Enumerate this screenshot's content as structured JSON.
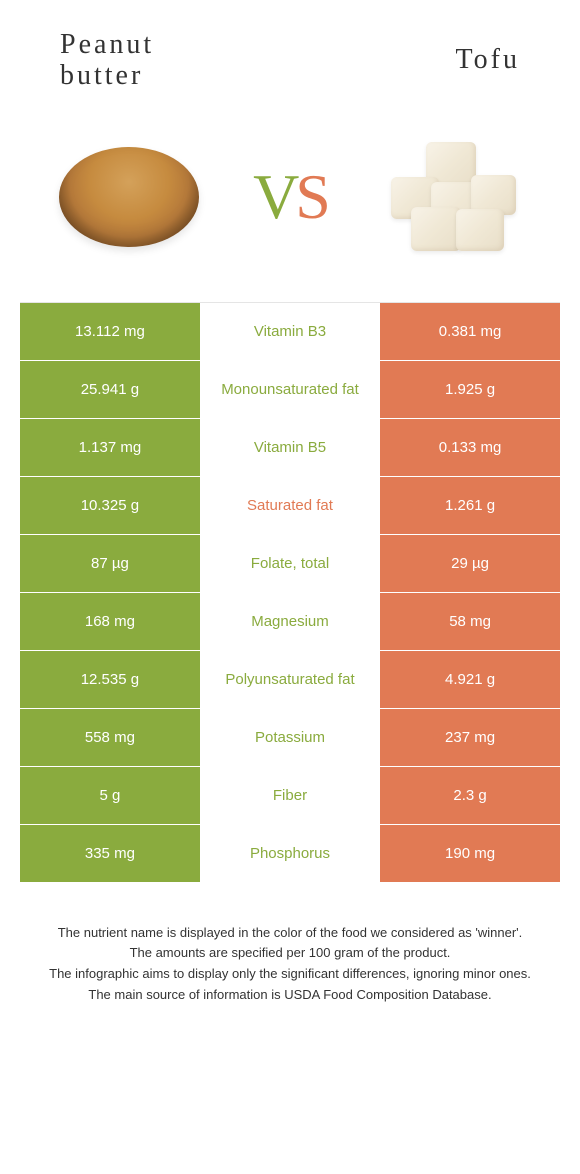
{
  "colors": {
    "left": "#8aab3e",
    "right": "#e17a54",
    "mid_bg": "#ffffff",
    "row_border": "rgba(255,255,255,0.4)"
  },
  "header": {
    "left_title_line1": "Peanut",
    "left_title_line2": "butter",
    "right_title": "Tofu",
    "vs_v": "V",
    "vs_s": "S"
  },
  "rows": [
    {
      "left": "13.112 mg",
      "label": "Vitamin B3",
      "right": "0.381 mg",
      "winner": "left"
    },
    {
      "left": "25.941 g",
      "label": "Monounsaturated fat",
      "right": "1.925 g",
      "winner": "left"
    },
    {
      "left": "1.137 mg",
      "label": "Vitamin B5",
      "right": "0.133 mg",
      "winner": "left"
    },
    {
      "left": "10.325 g",
      "label": "Saturated fat",
      "right": "1.261 g",
      "winner": "right"
    },
    {
      "left": "87 µg",
      "label": "Folate, total",
      "right": "29 µg",
      "winner": "left"
    },
    {
      "left": "168 mg",
      "label": "Magnesium",
      "right": "58 mg",
      "winner": "left"
    },
    {
      "left": "12.535 g",
      "label": "Polyunsaturated fat",
      "right": "4.921 g",
      "winner": "left"
    },
    {
      "left": "558 mg",
      "label": "Potassium",
      "right": "237 mg",
      "winner": "left"
    },
    {
      "left": "5 g",
      "label": "Fiber",
      "right": "2.3 g",
      "winner": "left"
    },
    {
      "left": "335 mg",
      "label": "Phosphorus",
      "right": "190 mg",
      "winner": "left"
    }
  ],
  "footer": {
    "line1": "The nutrient name is displayed in the color of the food we considered as 'winner'.",
    "line2": "The amounts are specified per 100 gram of the product.",
    "line3": "The infographic aims to display only the significant differences, ignoring minor ones.",
    "line4": "The main source of information is USDA Food Composition Database."
  }
}
